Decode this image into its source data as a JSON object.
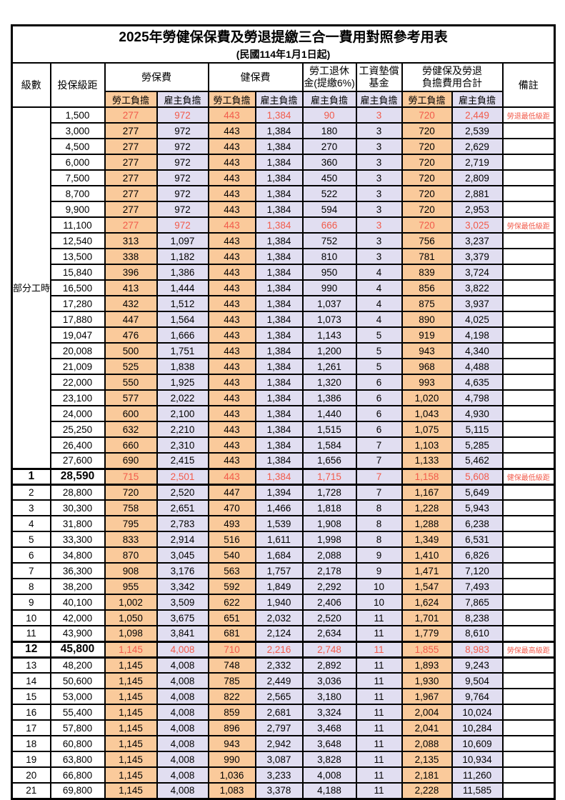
{
  "page": {
    "title": "2025年勞健保保費及勞退提繳三合一費用對照參考用表",
    "subtitle": "(民國114年1月1日起)"
  },
  "columns": {
    "level": "級數",
    "bracket": "投保級距",
    "labor": "勞保費",
    "health": "健保費",
    "pension_line1": "勞工退休",
    "pension_line2": "金(提繳6%)",
    "wage_fund_line1": "工資墊償",
    "wage_fund_line2": "基金",
    "total_line1": "勞健保及勞退",
    "total_line2": "負擔費用合計",
    "note": "備註",
    "employee": "勞工負擔",
    "employer": "雇主負擔"
  },
  "part_time_label": "部分工時",
  "colors": {
    "employee_bg": "#FACA9B",
    "employer_bg": "#E1DEF1",
    "highlight_red": "#F25B4B"
  },
  "rows": [
    {
      "level": "",
      "bracket": "1,500",
      "v": [
        "277",
        "972",
        "443",
        "1,384",
        "90",
        "3",
        "720",
        "2,449"
      ],
      "note": "勞退最低級距",
      "red": true,
      "bold": false
    },
    {
      "level": "",
      "bracket": "3,000",
      "v": [
        "277",
        "972",
        "443",
        "1,384",
        "180",
        "3",
        "720",
        "2,539"
      ],
      "note": "",
      "red": false,
      "bold": false
    },
    {
      "level": "",
      "bracket": "4,500",
      "v": [
        "277",
        "972",
        "443",
        "1,384",
        "270",
        "3",
        "720",
        "2,629"
      ],
      "note": "",
      "red": false,
      "bold": false
    },
    {
      "level": "",
      "bracket": "6,000",
      "v": [
        "277",
        "972",
        "443",
        "1,384",
        "360",
        "3",
        "720",
        "2,719"
      ],
      "note": "",
      "red": false,
      "bold": false
    },
    {
      "level": "",
      "bracket": "7,500",
      "v": [
        "277",
        "972",
        "443",
        "1,384",
        "450",
        "3",
        "720",
        "2,809"
      ],
      "note": "",
      "red": false,
      "bold": false
    },
    {
      "level": "",
      "bracket": "8,700",
      "v": [
        "277",
        "972",
        "443",
        "1,384",
        "522",
        "3",
        "720",
        "2,881"
      ],
      "note": "",
      "red": false,
      "bold": false
    },
    {
      "level": "",
      "bracket": "9,900",
      "v": [
        "277",
        "972",
        "443",
        "1,384",
        "594",
        "3",
        "720",
        "2,953"
      ],
      "note": "",
      "red": false,
      "bold": false
    },
    {
      "level": "",
      "bracket": "11,100",
      "v": [
        "277",
        "972",
        "443",
        "1,384",
        "666",
        "3",
        "720",
        "3,025"
      ],
      "note": "勞保最低級距",
      "red": true,
      "bold": false
    },
    {
      "level": "",
      "bracket": "12,540",
      "v": [
        "313",
        "1,097",
        "443",
        "1,384",
        "752",
        "3",
        "756",
        "3,237"
      ],
      "note": "",
      "red": false,
      "bold": false
    },
    {
      "level": "",
      "bracket": "13,500",
      "v": [
        "338",
        "1,182",
        "443",
        "1,384",
        "810",
        "3",
        "781",
        "3,379"
      ],
      "note": "",
      "red": false,
      "bold": false
    },
    {
      "level": "",
      "bracket": "15,840",
      "v": [
        "396",
        "1,386",
        "443",
        "1,384",
        "950",
        "4",
        "839",
        "3,724"
      ],
      "note": "",
      "red": false,
      "bold": false
    },
    {
      "level": "",
      "bracket": "16,500",
      "v": [
        "413",
        "1,444",
        "443",
        "1,384",
        "990",
        "4",
        "856",
        "3,822"
      ],
      "note": "",
      "red": false,
      "bold": false
    },
    {
      "level": "",
      "bracket": "17,280",
      "v": [
        "432",
        "1,512",
        "443",
        "1,384",
        "1,037",
        "4",
        "875",
        "3,937"
      ],
      "note": "",
      "red": false,
      "bold": false
    },
    {
      "level": "",
      "bracket": "17,880",
      "v": [
        "447",
        "1,564",
        "443",
        "1,384",
        "1,073",
        "4",
        "890",
        "4,025"
      ],
      "note": "",
      "red": false,
      "bold": false
    },
    {
      "level": "",
      "bracket": "19,047",
      "v": [
        "476",
        "1,666",
        "443",
        "1,384",
        "1,143",
        "5",
        "919",
        "4,198"
      ],
      "note": "",
      "red": false,
      "bold": false
    },
    {
      "level": "",
      "bracket": "20,008",
      "v": [
        "500",
        "1,751",
        "443",
        "1,384",
        "1,200",
        "5",
        "943",
        "4,340"
      ],
      "note": "",
      "red": false,
      "bold": false
    },
    {
      "level": "",
      "bracket": "21,009",
      "v": [
        "525",
        "1,838",
        "443",
        "1,384",
        "1,261",
        "5",
        "968",
        "4,488"
      ],
      "note": "",
      "red": false,
      "bold": false
    },
    {
      "level": "",
      "bracket": "22,000",
      "v": [
        "550",
        "1,925",
        "443",
        "1,384",
        "1,320",
        "6",
        "993",
        "4,635"
      ],
      "note": "",
      "red": false,
      "bold": false
    },
    {
      "level": "",
      "bracket": "23,100",
      "v": [
        "577",
        "2,022",
        "443",
        "1,384",
        "1,386",
        "6",
        "1,020",
        "4,798"
      ],
      "note": "",
      "red": false,
      "bold": false
    },
    {
      "level": "",
      "bracket": "24,000",
      "v": [
        "600",
        "2,100",
        "443",
        "1,384",
        "1,440",
        "6",
        "1,043",
        "4,930"
      ],
      "note": "",
      "red": false,
      "bold": false
    },
    {
      "level": "",
      "bracket": "25,250",
      "v": [
        "632",
        "2,210",
        "443",
        "1,384",
        "1,515",
        "6",
        "1,075",
        "5,115"
      ],
      "note": "",
      "red": false,
      "bold": false
    },
    {
      "level": "",
      "bracket": "26,400",
      "v": [
        "660",
        "2,310",
        "443",
        "1,384",
        "1,584",
        "7",
        "1,103",
        "5,285"
      ],
      "note": "",
      "red": false,
      "bold": false
    },
    {
      "level": "",
      "bracket": "27,600",
      "v": [
        "690",
        "2,415",
        "443",
        "1,384",
        "1,656",
        "7",
        "1,133",
        "5,462"
      ],
      "note": "",
      "red": false,
      "bold": false
    },
    {
      "level": "1",
      "bracket": "28,590",
      "v": [
        "715",
        "2,501",
        "443",
        "1,384",
        "1,715",
        "7",
        "1,158",
        "5,608"
      ],
      "note": "健保最低級距",
      "red": true,
      "bold": true
    },
    {
      "level": "2",
      "bracket": "28,800",
      "v": [
        "720",
        "2,520",
        "447",
        "1,394",
        "1,728",
        "7",
        "1,167",
        "5,649"
      ],
      "note": "",
      "red": false,
      "bold": false
    },
    {
      "level": "3",
      "bracket": "30,300",
      "v": [
        "758",
        "2,651",
        "470",
        "1,466",
        "1,818",
        "8",
        "1,228",
        "5,943"
      ],
      "note": "",
      "red": false,
      "bold": false
    },
    {
      "level": "4",
      "bracket": "31,800",
      "v": [
        "795",
        "2,783",
        "493",
        "1,539",
        "1,908",
        "8",
        "1,288",
        "6,238"
      ],
      "note": "",
      "red": false,
      "bold": false
    },
    {
      "level": "5",
      "bracket": "33,300",
      "v": [
        "833",
        "2,914",
        "516",
        "1,611",
        "1,998",
        "8",
        "1,349",
        "6,531"
      ],
      "note": "",
      "red": false,
      "bold": false
    },
    {
      "level": "6",
      "bracket": "34,800",
      "v": [
        "870",
        "3,045",
        "540",
        "1,684",
        "2,088",
        "9",
        "1,410",
        "6,826"
      ],
      "note": "",
      "red": false,
      "bold": false
    },
    {
      "level": "7",
      "bracket": "36,300",
      "v": [
        "908",
        "3,176",
        "563",
        "1,757",
        "2,178",
        "9",
        "1,471",
        "7,120"
      ],
      "note": "",
      "red": false,
      "bold": false
    },
    {
      "level": "8",
      "bracket": "38,200",
      "v": [
        "955",
        "3,342",
        "592",
        "1,849",
        "2,292",
        "10",
        "1,547",
        "7,493"
      ],
      "note": "",
      "red": false,
      "bold": false
    },
    {
      "level": "9",
      "bracket": "40,100",
      "v": [
        "1,002",
        "3,509",
        "622",
        "1,940",
        "2,406",
        "10",
        "1,624",
        "7,865"
      ],
      "note": "",
      "red": false,
      "bold": false
    },
    {
      "level": "10",
      "bracket": "42,000",
      "v": [
        "1,050",
        "3,675",
        "651",
        "2,032",
        "2,520",
        "11",
        "1,701",
        "8,238"
      ],
      "note": "",
      "red": false,
      "bold": false
    },
    {
      "level": "11",
      "bracket": "43,900",
      "v": [
        "1,098",
        "3,841",
        "681",
        "2,124",
        "2,634",
        "11",
        "1,779",
        "8,610"
      ],
      "note": "",
      "red": false,
      "bold": false
    },
    {
      "level": "12",
      "bracket": "45,800",
      "v": [
        "1,145",
        "4,008",
        "710",
        "2,216",
        "2,748",
        "11",
        "1,855",
        "8,983"
      ],
      "note": "勞保最高級距",
      "red": true,
      "bold": true
    },
    {
      "level": "13",
      "bracket": "48,200",
      "v": [
        "1,145",
        "4,008",
        "748",
        "2,332",
        "2,892",
        "11",
        "1,893",
        "9,243"
      ],
      "note": "",
      "red": false,
      "bold": false
    },
    {
      "level": "14",
      "bracket": "50,600",
      "v": [
        "1,145",
        "4,008",
        "785",
        "2,449",
        "3,036",
        "11",
        "1,930",
        "9,504"
      ],
      "note": "",
      "red": false,
      "bold": false
    },
    {
      "level": "15",
      "bracket": "53,000",
      "v": [
        "1,145",
        "4,008",
        "822",
        "2,565",
        "3,180",
        "11",
        "1,967",
        "9,764"
      ],
      "note": "",
      "red": false,
      "bold": false
    },
    {
      "level": "16",
      "bracket": "55,400",
      "v": [
        "1,145",
        "4,008",
        "859",
        "2,681",
        "3,324",
        "11",
        "2,004",
        "10,024"
      ],
      "note": "",
      "red": false,
      "bold": false
    },
    {
      "level": "17",
      "bracket": "57,800",
      "v": [
        "1,145",
        "4,008",
        "896",
        "2,797",
        "3,468",
        "11",
        "2,041",
        "10,284"
      ],
      "note": "",
      "red": false,
      "bold": false
    },
    {
      "level": "18",
      "bracket": "60,800",
      "v": [
        "1,145",
        "4,008",
        "943",
        "2,942",
        "3,648",
        "11",
        "2,088",
        "10,609"
      ],
      "note": "",
      "red": false,
      "bold": false
    },
    {
      "level": "19",
      "bracket": "63,800",
      "v": [
        "1,145",
        "4,008",
        "990",
        "3,087",
        "3,828",
        "11",
        "2,135",
        "10,934"
      ],
      "note": "",
      "red": false,
      "bold": false
    },
    {
      "level": "20",
      "bracket": "66,800",
      "v": [
        "1,145",
        "4,008",
        "1,036",
        "3,233",
        "4,008",
        "11",
        "2,181",
        "11,260"
      ],
      "note": "",
      "red": false,
      "bold": false
    },
    {
      "level": "21",
      "bracket": "69,800",
      "v": [
        "1,145",
        "4,008",
        "1,083",
        "3,378",
        "4,188",
        "11",
        "2,228",
        "11,585"
      ],
      "note": "",
      "red": false,
      "bold": false
    }
  ]
}
